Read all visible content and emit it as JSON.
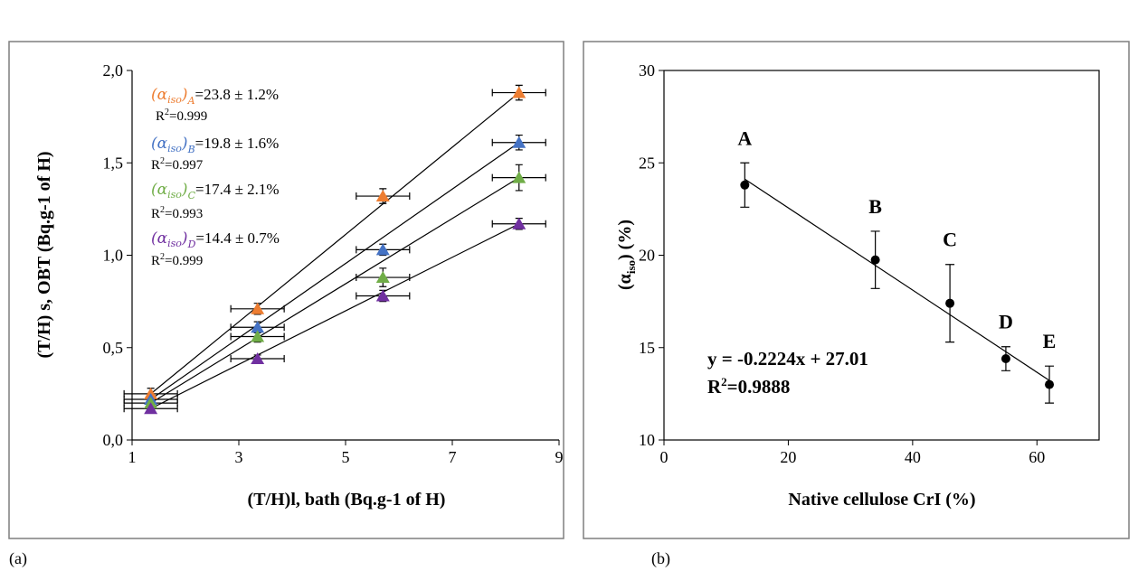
{
  "captions": [
    "(a)",
    "(b)"
  ],
  "chart_data": [
    {
      "type": "scatter",
      "panel": "(a)",
      "title": "",
      "xlabel": "(T/H)l, bath (Bq.g-1 of H)",
      "ylabel": "(T/H) s, OBT (Bq.g-1 of H)",
      "xlim": [
        1,
        9
      ],
      "ylim": [
        0,
        2
      ],
      "xticks": [
        "1",
        "3",
        "5",
        "7",
        "9"
      ],
      "yticks": [
        "0,0",
        "0,5",
        "1,0",
        "1,5",
        "2,0"
      ],
      "grid": false,
      "legend": "none",
      "marker": "triangle",
      "x_error": 0.5,
      "series": [
        {
          "key": "A",
          "color": "#ED7D31",
          "x": [
            1.35,
            3.35,
            5.7,
            8.25
          ],
          "y": [
            0.25,
            0.71,
            1.32,
            1.88
          ],
          "y_error": [
            0.03,
            0.03,
            0.04,
            0.04
          ],
          "fit": [
            [
              1.35,
              0.25
            ],
            [
              8.25,
              1.88
            ]
          ],
          "label_main": "=23.8 ± 1.2%",
          "label_alpha": "(α",
          "label_sub_iso": "iso",
          "label_close": ")",
          "label_sub_series": "A",
          "r2": "=0.999"
        },
        {
          "key": "B",
          "color": "#4472C4",
          "x": [
            1.35,
            3.35,
            5.7,
            8.25
          ],
          "y": [
            0.22,
            0.61,
            1.03,
            1.61
          ],
          "y_error": [
            0.03,
            0.03,
            0.03,
            0.04
          ],
          "fit": [
            [
              1.35,
              0.22
            ],
            [
              8.25,
              1.61
            ]
          ],
          "label_main": "=19.8 ± 1.6%",
          "label_alpha": "(α",
          "label_sub_iso": "iso",
          "label_close": ")",
          "label_sub_series": "B",
          "r2": "=0.997"
        },
        {
          "key": "C",
          "color": "#70AD47",
          "x": [
            1.35,
            3.35,
            5.7,
            8.25
          ],
          "y": [
            0.2,
            0.56,
            0.88,
            1.42
          ],
          "y_error": [
            0.03,
            0.03,
            0.05,
            0.07
          ],
          "fit": [
            [
              1.35,
              0.2
            ],
            [
              8.25,
              1.42
            ]
          ],
          "label_main": "=17.4 ± 2.1%",
          "label_alpha": "(α",
          "label_sub_iso": "iso",
          "label_close": ")",
          "label_sub_series": "C",
          "r2": "=0.993"
        },
        {
          "key": "D",
          "color": "#7030A0",
          "x": [
            1.35,
            3.35,
            5.7,
            8.25
          ],
          "y": [
            0.17,
            0.44,
            0.78,
            1.17
          ],
          "y_error": [
            0.02,
            0.02,
            0.03,
            0.03
          ],
          "fit": [
            [
              1.35,
              0.17
            ],
            [
              8.25,
              1.17
            ]
          ],
          "label_main": "=14.4 ± 0.7%",
          "label_alpha": "(α",
          "label_sub_iso": "iso",
          "label_close": ")",
          "label_sub_series": "D",
          "r2": "=0.999"
        }
      ],
      "r2_prefix": "R"
    },
    {
      "type": "scatter",
      "panel": "(b)",
      "title": "",
      "xlabel": "Native cellulose CrI (%)",
      "ylabel_alpha": "(α",
      "ylabel_sub": "iso",
      "ylabel_rest": ") (%)",
      "xlim": [
        0,
        70
      ],
      "ylim": [
        10,
        30
      ],
      "xticks": [
        "0",
        "20",
        "40",
        "60"
      ],
      "yticks": [
        "10",
        "15",
        "20",
        "25",
        "30"
      ],
      "grid": false,
      "legend": "none",
      "marker": "circle",
      "color": "#000000",
      "points": [
        {
          "label": "A",
          "x": 13,
          "y": 23.8,
          "err": 1.2
        },
        {
          "label": "B",
          "x": 34,
          "y": 19.75,
          "err": 1.55
        },
        {
          "label": "C",
          "x": 46,
          "y": 17.4,
          "err": 2.1
        },
        {
          "label": "D",
          "x": 55,
          "y": 14.4,
          "err": 0.65
        },
        {
          "label": "E",
          "x": 62,
          "y": 13.0,
          "err": 1.0
        }
      ],
      "fit": {
        "slope": -0.2224,
        "intercept": 27.01,
        "x_range": [
          13,
          62
        ]
      },
      "equation": "y = -0.2224x + 27.01",
      "r2_prefix": "R",
      "r2_value": "=0.9888"
    }
  ]
}
